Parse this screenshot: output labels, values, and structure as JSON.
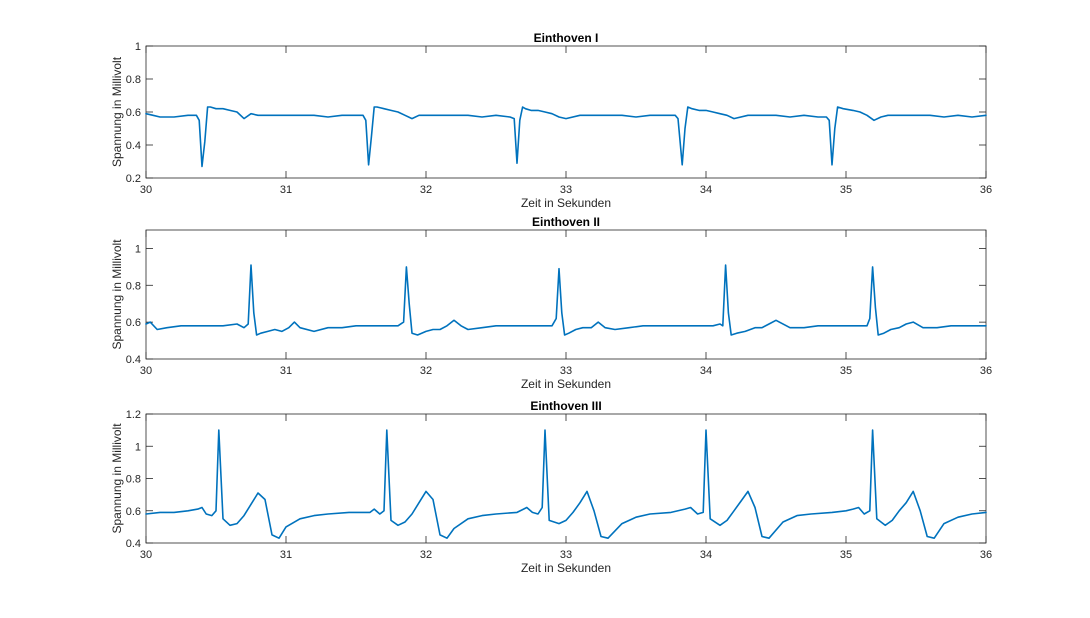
{
  "chart_data": [
    {
      "type": "line",
      "title": "Einthoven I",
      "xlabel": "Zeit in Sekunden",
      "ylabel": "Spannung in Millivolt",
      "xlim": [
        30,
        36
      ],
      "ylim": [
        0.2,
        1.0
      ],
      "xticks": [
        "30",
        "31",
        "32",
        "33",
        "34",
        "35",
        "36"
      ],
      "yticks": [
        "0.2",
        "0.4",
        "0.6",
        "0.8",
        "1"
      ],
      "grid": false,
      "color": "#0072BD",
      "series": [
        {
          "x": [
            30.0,
            30.05,
            30.1,
            30.2,
            30.3,
            30.36,
            30.38,
            30.4,
            30.42,
            30.44,
            30.46,
            30.5,
            30.55,
            30.6,
            30.65,
            30.7,
            30.75,
            30.8,
            30.9,
            31.0,
            31.1,
            31.2,
            31.3,
            31.4,
            31.5,
            31.55,
            31.57,
            31.59,
            31.61,
            31.63,
            31.65,
            31.7,
            31.75,
            31.8,
            31.85,
            31.9,
            31.95,
            32.0,
            32.1,
            32.2,
            32.3,
            32.4,
            32.5,
            32.6,
            32.63,
            32.65,
            32.67,
            32.69,
            32.71,
            32.75,
            32.8,
            32.85,
            32.9,
            32.95,
            33.0,
            33.1,
            33.2,
            33.3,
            33.4,
            33.5,
            33.6,
            33.7,
            33.78,
            33.8,
            33.83,
            33.85,
            33.87,
            33.9,
            33.95,
            34.0,
            34.05,
            34.1,
            34.15,
            34.2,
            34.3,
            34.4,
            34.5,
            34.6,
            34.7,
            34.8,
            34.86,
            34.88,
            34.9,
            34.92,
            34.94,
            34.98,
            35.05,
            35.1,
            35.15,
            35.2,
            35.25,
            35.3,
            35.4,
            35.5,
            35.6,
            35.7,
            35.8,
            35.9,
            36.0
          ],
          "y": [
            0.59,
            0.58,
            0.57,
            0.57,
            0.58,
            0.58,
            0.55,
            0.27,
            0.42,
            0.63,
            0.63,
            0.62,
            0.62,
            0.61,
            0.6,
            0.56,
            0.59,
            0.58,
            0.58,
            0.58,
            0.58,
            0.58,
            0.57,
            0.58,
            0.58,
            0.58,
            0.55,
            0.28,
            0.45,
            0.63,
            0.63,
            0.62,
            0.61,
            0.6,
            0.58,
            0.56,
            0.58,
            0.58,
            0.58,
            0.58,
            0.58,
            0.57,
            0.58,
            0.57,
            0.56,
            0.29,
            0.55,
            0.63,
            0.62,
            0.61,
            0.61,
            0.6,
            0.59,
            0.57,
            0.56,
            0.58,
            0.58,
            0.58,
            0.58,
            0.57,
            0.58,
            0.58,
            0.58,
            0.56,
            0.28,
            0.5,
            0.63,
            0.62,
            0.61,
            0.61,
            0.6,
            0.59,
            0.58,
            0.56,
            0.58,
            0.58,
            0.58,
            0.57,
            0.58,
            0.57,
            0.57,
            0.55,
            0.28,
            0.5,
            0.63,
            0.62,
            0.61,
            0.6,
            0.58,
            0.55,
            0.57,
            0.58,
            0.58,
            0.58,
            0.58,
            0.57,
            0.58,
            0.57,
            0.58
          ]
        }
      ]
    },
    {
      "type": "line",
      "title": "Einthoven II",
      "xlabel": "Zeit in Sekunden",
      "ylabel": "Spannung in Millivolt",
      "xlim": [
        30,
        36
      ],
      "ylim": [
        0.4,
        1.1
      ],
      "xticks": [
        "30",
        "31",
        "32",
        "33",
        "34",
        "35",
        "36"
      ],
      "yticks": [
        "0.4",
        "0.6",
        "0.8",
        "1"
      ],
      "grid": false,
      "color": "#0072BD",
      "series": [
        {
          "x": [
            30.0,
            30.03,
            30.08,
            30.15,
            30.25,
            30.35,
            30.45,
            30.55,
            30.65,
            30.7,
            30.73,
            30.75,
            30.77,
            30.79,
            30.82,
            30.87,
            30.92,
            30.97,
            31.02,
            31.06,
            31.1,
            31.2,
            31.3,
            31.4,
            31.5,
            31.6,
            31.7,
            31.8,
            31.84,
            31.86,
            31.88,
            31.9,
            31.94,
            32.0,
            32.05,
            32.1,
            32.15,
            32.2,
            32.25,
            32.3,
            32.4,
            32.5,
            32.6,
            32.7,
            32.8,
            32.9,
            32.93,
            32.95,
            32.97,
            32.99,
            33.02,
            33.07,
            33.12,
            33.18,
            33.23,
            33.28,
            33.35,
            33.45,
            33.55,
            33.65,
            33.75,
            33.85,
            33.95,
            34.05,
            34.1,
            34.12,
            34.14,
            34.16,
            34.18,
            34.22,
            34.28,
            34.35,
            34.4,
            34.45,
            34.5,
            34.6,
            34.7,
            34.8,
            34.9,
            35.0,
            35.1,
            35.15,
            35.17,
            35.19,
            35.21,
            35.23,
            35.27,
            35.32,
            35.38,
            35.43,
            35.48,
            35.55,
            35.65,
            35.75,
            35.85,
            35.95,
            36.0
          ],
          "y": [
            0.59,
            0.6,
            0.56,
            0.57,
            0.58,
            0.58,
            0.58,
            0.58,
            0.59,
            0.57,
            0.59,
            0.91,
            0.65,
            0.53,
            0.54,
            0.55,
            0.56,
            0.55,
            0.57,
            0.6,
            0.57,
            0.55,
            0.57,
            0.57,
            0.58,
            0.58,
            0.58,
            0.58,
            0.6,
            0.9,
            0.7,
            0.54,
            0.53,
            0.55,
            0.56,
            0.56,
            0.58,
            0.61,
            0.58,
            0.56,
            0.57,
            0.58,
            0.58,
            0.58,
            0.58,
            0.58,
            0.62,
            0.89,
            0.65,
            0.53,
            0.54,
            0.56,
            0.57,
            0.57,
            0.6,
            0.57,
            0.56,
            0.57,
            0.58,
            0.58,
            0.58,
            0.58,
            0.58,
            0.58,
            0.59,
            0.58,
            0.91,
            0.65,
            0.53,
            0.54,
            0.55,
            0.57,
            0.57,
            0.59,
            0.61,
            0.57,
            0.57,
            0.58,
            0.58,
            0.58,
            0.58,
            0.58,
            0.62,
            0.9,
            0.68,
            0.53,
            0.54,
            0.56,
            0.57,
            0.59,
            0.6,
            0.57,
            0.57,
            0.58,
            0.58,
            0.58,
            0.58
          ]
        }
      ]
    },
    {
      "type": "line",
      "title": "Einthoven III",
      "xlabel": "Zeit in Sekunden",
      "ylabel": "Spannung in Millivolt",
      "xlim": [
        30,
        36
      ],
      "ylim": [
        0.4,
        1.2
      ],
      "xticks": [
        "30",
        "31",
        "32",
        "33",
        "34",
        "35",
        "36"
      ],
      "yticks": [
        "0.4",
        "0.6",
        "0.8",
        "1",
        "1.2"
      ],
      "grid": false,
      "color": "#0072BD",
      "series": [
        {
          "x": [
            30.0,
            30.1,
            30.2,
            30.3,
            30.37,
            30.4,
            30.43,
            30.47,
            30.5,
            30.52,
            30.55,
            30.6,
            30.65,
            30.7,
            30.75,
            30.8,
            30.85,
            30.9,
            30.95,
            31.0,
            31.1,
            31.2,
            31.3,
            31.45,
            31.55,
            31.6,
            31.63,
            31.67,
            31.7,
            31.72,
            31.75,
            31.8,
            31.85,
            31.9,
            31.95,
            32.0,
            32.05,
            32.1,
            32.15,
            32.2,
            32.3,
            32.4,
            32.5,
            32.65,
            32.72,
            32.76,
            32.8,
            32.83,
            32.85,
            32.88,
            32.95,
            33.0,
            33.05,
            33.1,
            33.15,
            33.2,
            33.25,
            33.3,
            33.4,
            33.5,
            33.6,
            33.75,
            33.85,
            33.89,
            33.94,
            33.98,
            34.0,
            34.03,
            34.1,
            34.15,
            34.2,
            34.25,
            34.3,
            34.35,
            34.4,
            34.45,
            34.55,
            34.65,
            34.75,
            34.9,
            35.0,
            35.05,
            35.09,
            35.13,
            35.17,
            35.19,
            35.22,
            35.28,
            35.33,
            35.38,
            35.43,
            35.48,
            35.53,
            35.58,
            35.63,
            35.7,
            35.8,
            35.9,
            36.0
          ],
          "y": [
            0.58,
            0.59,
            0.59,
            0.6,
            0.61,
            0.62,
            0.58,
            0.57,
            0.6,
            1.1,
            0.55,
            0.51,
            0.52,
            0.57,
            0.64,
            0.71,
            0.67,
            0.45,
            0.43,
            0.5,
            0.55,
            0.57,
            0.58,
            0.59,
            0.59,
            0.59,
            0.61,
            0.58,
            0.6,
            1.1,
            0.54,
            0.51,
            0.53,
            0.58,
            0.65,
            0.72,
            0.67,
            0.45,
            0.43,
            0.49,
            0.55,
            0.57,
            0.58,
            0.59,
            0.62,
            0.59,
            0.58,
            0.62,
            1.1,
            0.54,
            0.52,
            0.54,
            0.59,
            0.65,
            0.72,
            0.6,
            0.44,
            0.43,
            0.52,
            0.56,
            0.58,
            0.59,
            0.61,
            0.62,
            0.58,
            0.59,
            1.1,
            0.55,
            0.51,
            0.54,
            0.6,
            0.66,
            0.72,
            0.62,
            0.44,
            0.43,
            0.53,
            0.57,
            0.58,
            0.59,
            0.6,
            0.61,
            0.62,
            0.58,
            0.6,
            1.1,
            0.55,
            0.51,
            0.54,
            0.6,
            0.65,
            0.72,
            0.6,
            0.44,
            0.43,
            0.52,
            0.56,
            0.58,
            0.59
          ]
        }
      ]
    }
  ]
}
